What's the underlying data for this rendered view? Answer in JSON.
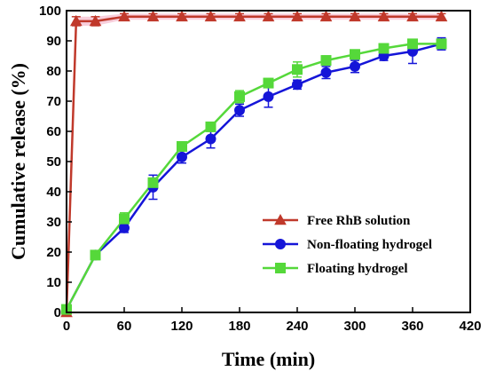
{
  "chart_data": {
    "type": "line",
    "xlabel": "Time (min)",
    "ylabel": "Cumulative release (%)",
    "xlim": [
      0,
      420
    ],
    "ylim": [
      0,
      100
    ],
    "xticks": [
      0,
      60,
      120,
      180,
      240,
      300,
      360,
      420
    ],
    "yticks": [
      0,
      10,
      20,
      30,
      40,
      50,
      60,
      70,
      80,
      90,
      100
    ],
    "grid": false,
    "legend_position": "bottom-right",
    "series": [
      {
        "name": "Free RhB solution",
        "marker": "triangle",
        "color": "#c0392b",
        "line_color": "#c0392b",
        "band_color": "#f2a8c0",
        "x": [
          0,
          10,
          30,
          60,
          90,
          120,
          150,
          180,
          210,
          240,
          270,
          300,
          330,
          360,
          390
        ],
        "y": [
          0,
          96.5,
          96.5,
          98,
          98,
          98,
          98,
          98,
          98,
          98,
          98,
          98,
          98,
          98,
          98
        ],
        "err": [
          0,
          1.5,
          1.5,
          1,
          1,
          1,
          1,
          1,
          1,
          1,
          1,
          1,
          1,
          1,
          1
        ]
      },
      {
        "name": "Non-floating hydrogel",
        "marker": "circle",
        "color": "#1515d8",
        "line_color": "#1515d8",
        "x": [
          0,
          30,
          60,
          90,
          120,
          150,
          180,
          210,
          240,
          270,
          300,
          330,
          360,
          390
        ],
        "y": [
          1,
          19,
          28,
          41.5,
          51.5,
          57.5,
          67,
          71.5,
          75.5,
          79.5,
          81.5,
          85,
          86.5,
          89
        ],
        "err": [
          0,
          1,
          1.5,
          4,
          2,
          3,
          2,
          3.5,
          1.5,
          2,
          2,
          1.5,
          4,
          2
        ]
      },
      {
        "name": "Floating hydrogel",
        "marker": "square",
        "color": "#55d83a",
        "line_color": "#55d83a",
        "x": [
          0,
          30,
          60,
          90,
          120,
          150,
          180,
          210,
          240,
          270,
          300,
          330,
          360,
          390
        ],
        "y": [
          1,
          19,
          31,
          43,
          55,
          61.5,
          71.5,
          76,
          80.5,
          83.5,
          85.5,
          87.5,
          89,
          89
        ],
        "err": [
          0,
          1,
          2,
          1.5,
          1.5,
          1.5,
          2,
          1.5,
          2.5,
          1.5,
          1.5,
          1.5,
          1.5,
          1.5
        ]
      }
    ]
  }
}
